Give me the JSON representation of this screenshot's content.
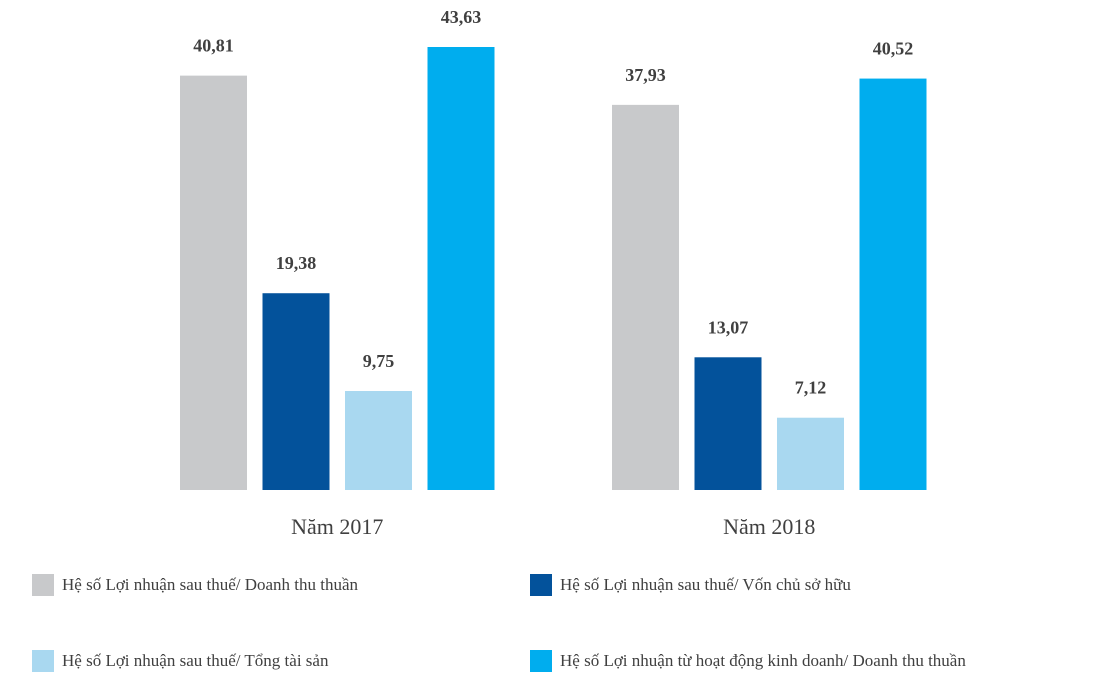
{
  "chart_data": {
    "type": "bar",
    "categories": [
      "Năm 2017",
      "Năm 2018"
    ],
    "series": [
      {
        "name": "Hệ số Lợi nhuận sau thuế/ Doanh thu thuần",
        "color": "#c8c9cb",
        "values": [
          40.81,
          37.93
        ],
        "labels": [
          "40,81",
          "37,93"
        ]
      },
      {
        "name": "Hệ số Lợi nhuận sau thuế/ Vốn chủ sở hữu",
        "color": "#03529b",
        "values": [
          19.38,
          13.07
        ],
        "labels": [
          "19,38",
          "13,07"
        ]
      },
      {
        "name": "Hệ số Lợi nhuận sau thuế/ Tổng tài sản",
        "color": "#a9d8f0",
        "values": [
          9.75,
          7.12
        ],
        "labels": [
          "9,75",
          "7,12"
        ]
      },
      {
        "name": "Hệ số Lợi nhuận từ hoạt động kinh doanh/ Doanh thu thuần",
        "color": "#00adee",
        "values": [
          43.63,
          40.52
        ],
        "labels": [
          "43,63",
          "40,52"
        ]
      }
    ],
    "ylim": [
      0,
      43.63
    ],
    "grid": false,
    "legend": "bottom"
  }
}
